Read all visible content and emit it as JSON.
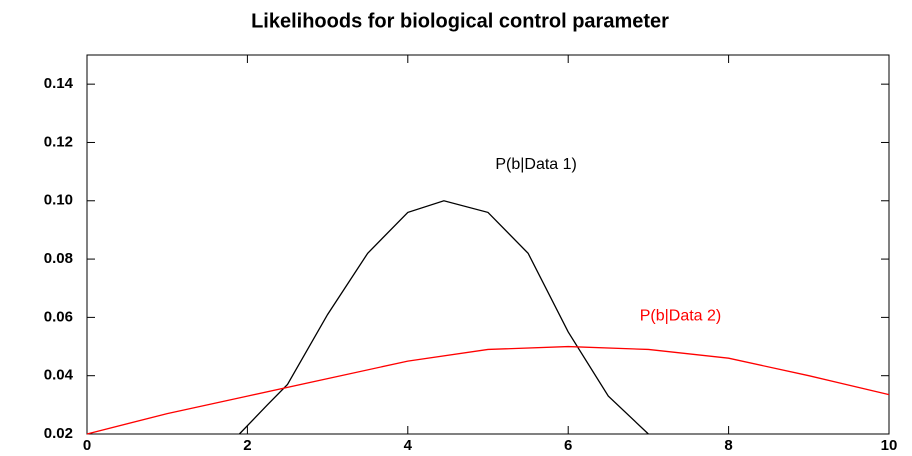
{
  "chart_data": {
    "type": "line",
    "title": "Likelihoods for biological control parameter",
    "series": [
      {
        "name": "P(b|Data 1)",
        "color": "#000000",
        "x": [
          1.9,
          2.25,
          2.5,
          3,
          3.5,
          4,
          4.45,
          5,
          5.5,
          6,
          6.5,
          7
        ],
        "values": [
          0.02,
          0.03,
          0.037,
          0.061,
          0.082,
          0.096,
          0.1,
          0.096,
          0.082,
          0.055,
          0.033,
          0.02
        ]
      },
      {
        "name": "P(b|Data 2)",
        "color": "#ff0000",
        "x": [
          0,
          1,
          2,
          3,
          4,
          5,
          6,
          7,
          8,
          9,
          10
        ],
        "values": [
          0.02,
          0.027,
          0.033,
          0.039,
          0.045,
          0.049,
          0.05,
          0.049,
          0.046,
          0.04,
          0.0335
        ]
      }
    ],
    "xlim": [
      0,
      10
    ],
    "xticks": [
      0,
      2,
      4,
      6,
      8,
      10
    ],
    "ylim": [
      0.02,
      0.15
    ],
    "yticks": [
      0.02,
      0.04,
      0.06,
      0.08,
      {
        "value": 0.1,
        "label": "0.10"
      },
      0.12,
      0.14
    ]
  }
}
